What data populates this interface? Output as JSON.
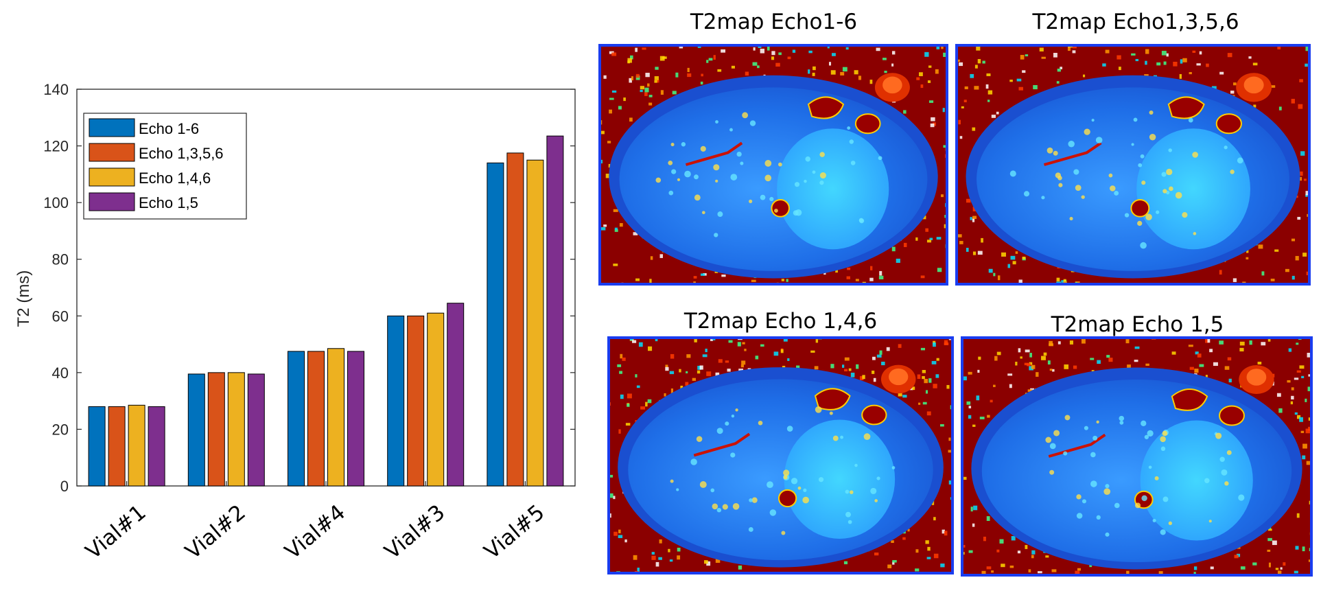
{
  "chart_data": {
    "type": "bar",
    "ylabel": "T2 (ms)",
    "xlabel": "",
    "ylim": [
      0,
      140
    ],
    "yticks": [
      0,
      20,
      40,
      60,
      80,
      100,
      120,
      140
    ],
    "categories": [
      "Vial#1",
      "Vial#2",
      "Vial#4",
      "Vial#3",
      "Vial#5"
    ],
    "series": [
      {
        "name": "Echo 1-6",
        "color": "#0072BD",
        "values": [
          28,
          39.5,
          47.5,
          60,
          114
        ]
      },
      {
        "name": "Echo 1,3,5,6",
        "color": "#D95319",
        "values": [
          28,
          40,
          47.5,
          60,
          117.5
        ]
      },
      {
        "name": "Echo 1,4,6",
        "color": "#EDB120",
        "values": [
          28.5,
          40,
          48.5,
          61,
          115
        ]
      },
      {
        "name": "Echo 1,5",
        "color": "#7E2F8E",
        "values": [
          28,
          39.5,
          47.5,
          64.5,
          123.5
        ]
      }
    ],
    "legend": "top-left",
    "grid": false
  },
  "maps": [
    {
      "title": "T2map Echo1-6",
      "border_color": "#1a3df0"
    },
    {
      "title": "T2map Echo1,3,5,6",
      "border_color": "#1a3df0"
    },
    {
      "title": "T2map Echo 1,4,6",
      "border_color": "#1a3df0"
    },
    {
      "title": "T2map Echo 1,5",
      "border_color": "#1a3df0"
    }
  ]
}
